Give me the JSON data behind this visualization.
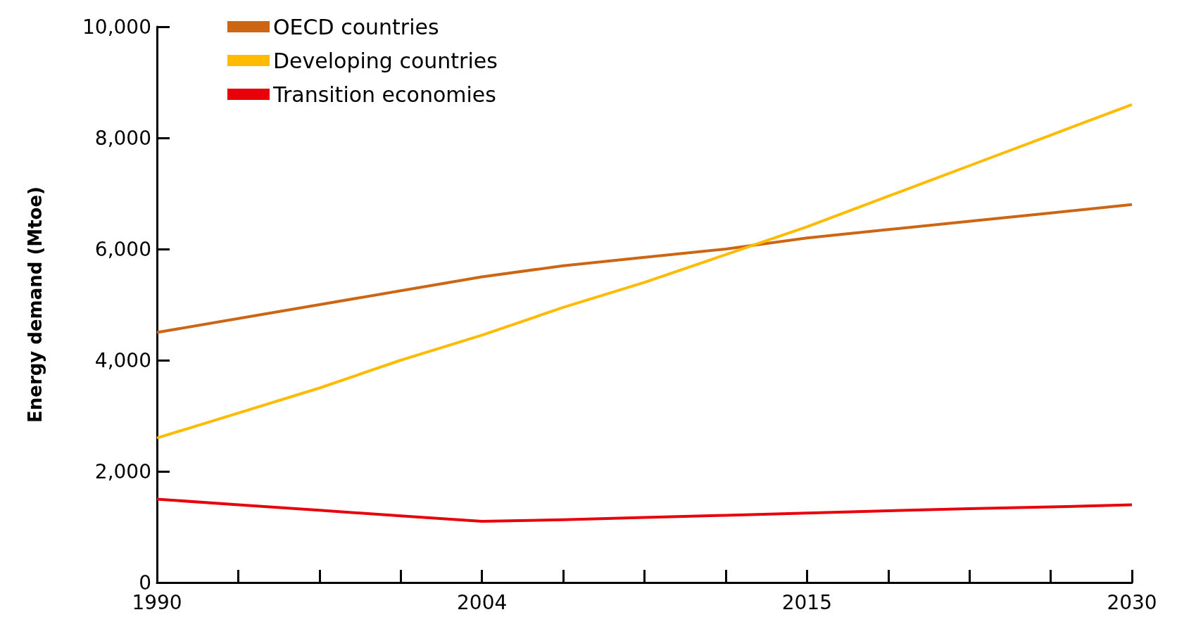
{
  "chart_data": {
    "type": "line",
    "ylabel": "Energy demand (Mtoe)",
    "categories": [
      "1990",
      null,
      null,
      null,
      "2004",
      null,
      null,
      null,
      "2015",
      null,
      null,
      null,
      "2030"
    ],
    "series": [
      {
        "name": "OECD countries",
        "color": "#cc6615",
        "values": [
          4500,
          4750,
          5000,
          5250,
          5500,
          5700,
          5850,
          6000,
          6200,
          6350,
          6500,
          6650,
          6800
        ]
      },
      {
        "name": "Developing countries",
        "color": "#ffbb00",
        "values": [
          2600,
          3050,
          3500,
          4000,
          4450,
          4950,
          5400,
          5900,
          6400,
          6950,
          7500,
          8050,
          8600
        ]
      },
      {
        "name": "Transition economies",
        "color": "#e8000b",
        "values": [
          1500,
          1400,
          1300,
          1200,
          1100,
          1130,
          1170,
          1210,
          1250,
          1290,
          1330,
          1360,
          1400
        ]
      }
    ],
    "ylim": [
      0,
      10000
    ],
    "yticks": [
      0,
      {
        "value": 2000,
        "label": "2,000"
      },
      {
        "value": 4000,
        "label": "4,000"
      },
      {
        "value": 6000,
        "label": "6,000"
      },
      {
        "value": 8000,
        "label": "8,000"
      },
      {
        "value": 10000,
        "label": "10,000"
      }
    ],
    "grid": false,
    "legend": "top left",
    "marker": "none",
    "line_style": "solid"
  }
}
